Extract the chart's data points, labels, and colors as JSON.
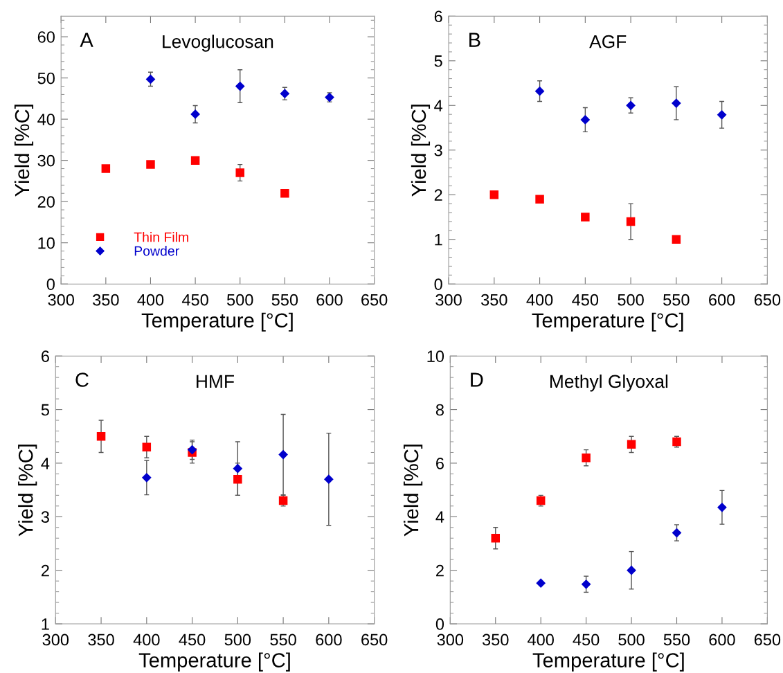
{
  "chart_data": [
    {
      "type": "scatter",
      "title": "Levoglucosan",
      "xlabel": "Temperature [°C]",
      "ylabel": "Yield [%C]",
      "annotations": [
        "A"
      ],
      "xlim": [
        300,
        650
      ],
      "xticks": [
        300,
        350,
        400,
        450,
        500,
        550,
        600,
        650
      ],
      "ylim": [
        0,
        65
      ],
      "yticks": [
        0,
        10,
        20,
        30,
        40,
        50,
        60
      ],
      "grid": false,
      "legend": "bottom left",
      "series": [
        {
          "name": "Thin Film",
          "color": "#ff0000",
          "marker": "square",
          "x": [
            350,
            400,
            450,
            500,
            550
          ],
          "values": [
            28,
            29,
            30,
            27,
            22
          ],
          "errors": [
            null,
            null,
            null,
            2,
            null
          ]
        },
        {
          "name": "Powder",
          "color": "#0000cc",
          "marker": "diamond",
          "x": [
            400,
            450,
            500,
            550,
            600
          ],
          "values": [
            49.7,
            41.2,
            48,
            46.2,
            45.3
          ],
          "errors": [
            1.7,
            2.1,
            4,
            1.5,
            1.1
          ]
        }
      ]
    },
    {
      "type": "scatter",
      "title": "AGF",
      "xlabel": "Temperature [°C]",
      "ylabel": "Yield [%C]",
      "annotations": [
        "B"
      ],
      "xlim": [
        300,
        650
      ],
      "xticks": [
        300,
        350,
        400,
        450,
        500,
        550,
        600,
        650
      ],
      "ylim": [
        0,
        6
      ],
      "yticks": [
        0,
        1,
        2,
        3,
        4,
        5,
        6
      ],
      "grid": false,
      "series": [
        {
          "color": "#ff0000",
          "marker": "square",
          "x": [
            350,
            400,
            450,
            500,
            550
          ],
          "values": [
            2.0,
            1.9,
            1.5,
            1.4,
            1.0
          ],
          "errors": [
            null,
            null,
            null,
            0.4,
            null
          ]
        },
        {
          "color": "#0000cc",
          "marker": "diamond",
          "x": [
            400,
            450,
            500,
            550,
            600
          ],
          "values": [
            4.32,
            3.68,
            4.0,
            4.05,
            3.79
          ],
          "errors": [
            0.23,
            0.27,
            0.17,
            0.37,
            0.3
          ]
        }
      ]
    },
    {
      "type": "scatter",
      "title": "HMF",
      "xlabel": "Temperature [°C]",
      "ylabel": "Yield [%C]",
      "annotations": [
        "C"
      ],
      "xlim": [
        300,
        650
      ],
      "xticks": [
        300,
        350,
        400,
        450,
        500,
        550,
        600,
        650
      ],
      "ylim": [
        1,
        6
      ],
      "yticks": [
        1,
        2,
        3,
        4,
        5,
        6
      ],
      "grid": false,
      "series": [
        {
          "color": "#ff0000",
          "marker": "square",
          "x": [
            350,
            400,
            450,
            500,
            550
          ],
          "values": [
            4.5,
            4.3,
            4.2,
            3.7,
            3.3
          ],
          "errors": [
            0.3,
            0.2,
            0.2,
            0.3,
            0.1
          ]
        },
        {
          "color": "#0000cc",
          "marker": "diamond",
          "x": [
            400,
            450,
            500,
            550,
            600
          ],
          "values": [
            3.73,
            4.25,
            3.9,
            4.16,
            3.7
          ],
          "errors": [
            0.32,
            0.18,
            0.5,
            0.75,
            0.86
          ]
        }
      ]
    },
    {
      "type": "scatter",
      "title": "Methyl Glyoxal",
      "xlabel": "Temperature [°C]",
      "ylabel": "Yield [%C]",
      "annotations": [
        "D"
      ],
      "xlim": [
        300,
        650
      ],
      "xticks": [
        300,
        350,
        400,
        450,
        500,
        550,
        600,
        650
      ],
      "ylim": [
        0,
        10
      ],
      "yticks": [
        0,
        2,
        4,
        6,
        8,
        10
      ],
      "grid": false,
      "series": [
        {
          "color": "#ff0000",
          "marker": "square",
          "x": [
            350,
            400,
            450,
            500,
            550
          ],
          "values": [
            3.2,
            4.6,
            6.2,
            6.7,
            6.8
          ],
          "errors": [
            0.4,
            0.2,
            0.3,
            0.3,
            0.2
          ]
        },
        {
          "color": "#0000cc",
          "marker": "diamond",
          "x": [
            400,
            450,
            500,
            550,
            600
          ],
          "values": [
            1.52,
            1.48,
            2.0,
            3.4,
            4.35
          ],
          "errors": [
            null,
            0.3,
            0.7,
            0.3,
            0.63
          ]
        }
      ]
    }
  ]
}
